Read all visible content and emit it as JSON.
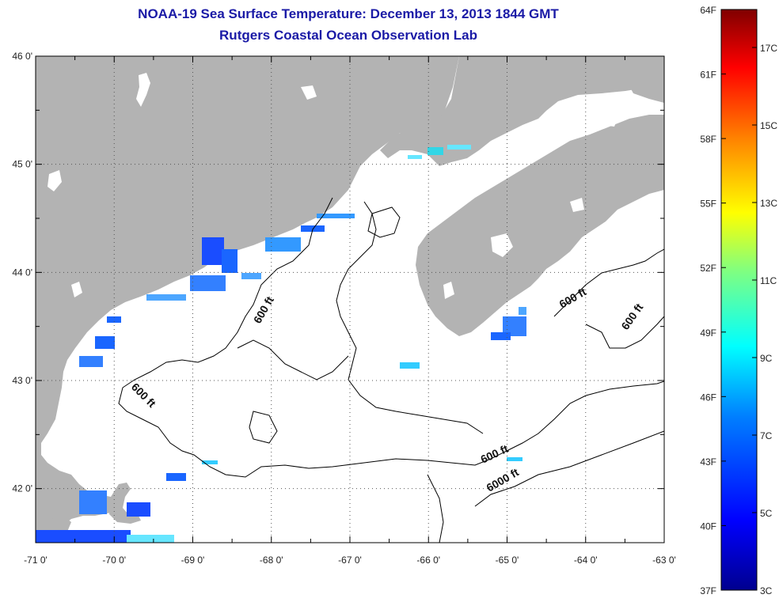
{
  "title": "NOAA-19 Sea Surface Temperature:  December 13, 2013 1844 GMT",
  "subtitle": "Rutgers Coastal Ocean Observation Lab",
  "map": {
    "lon_range": [
      -71,
      -63
    ],
    "lat_range": [
      41.5,
      46
    ],
    "x_ticks": [
      "-71 0'",
      "-70 0'",
      "-69 0'",
      "-68 0'",
      "-67 0'",
      "-66 0'",
      "-65 0'",
      "-64 0'",
      "-63 0'"
    ],
    "y_ticks": [
      "46 0'",
      "45 0'",
      "44 0'",
      "43 0'",
      "42 0'"
    ],
    "grid": "dotted",
    "land_color": "#b3b3b3",
    "ocean_color": "#ffffff",
    "contour_labels": [
      "600 ft",
      "600 ft",
      "600 ft",
      "600 ft",
      "600 ft",
      "6000 ft"
    ]
  },
  "colorbar": {
    "left_labels": [
      "64F",
      "61F",
      "58F",
      "55F",
      "52F",
      "49F",
      "46F",
      "43F",
      "40F",
      "37F"
    ],
    "right_labels": [
      "17C",
      "15C",
      "13C",
      "11C",
      "9C",
      "7C",
      "5C",
      "3C"
    ],
    "colors": [
      "#00008f",
      "#0000ff",
      "#0080ff",
      "#00ffff",
      "#80ff80",
      "#ffff00",
      "#ff8000",
      "#ff0000",
      "#800000"
    ]
  }
}
